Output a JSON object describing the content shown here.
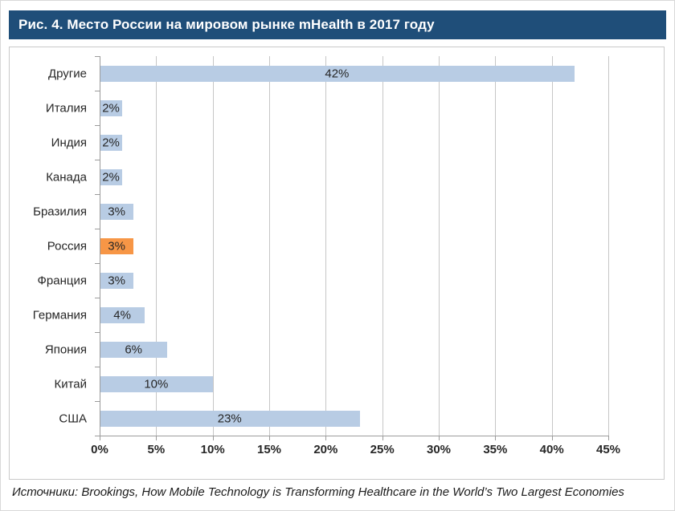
{
  "figure": {
    "source_note": "Источники: Brookings, How Mobile Technology is Transforming Healthcare in the World’s Two Largest Economies"
  },
  "colors": {
    "title_bar_bg": "#1f4e79",
    "title_text": "#ffffff",
    "bar": "#b8cce4",
    "bar_highlight": "#f79646",
    "gridline": "#c6c6c6",
    "axis_line": "#9b9b9b",
    "text": "#262626"
  },
  "chart_data": {
    "type": "bar",
    "orientation": "horizontal",
    "title": "Рис. 4. Место России на мировом рынке mHealth в 2017 году",
    "categories": [
      "Другие",
      "Италия",
      "Индия",
      "Канада",
      "Бразилия",
      "Россия",
      "Франция",
      "Германия",
      "Япония",
      "Китай",
      "США"
    ],
    "values": [
      42,
      2,
      2,
      2,
      3,
      3,
      3,
      4,
      6,
      10,
      23
    ],
    "value_labels": [
      "42%",
      "2%",
      "2%",
      "2%",
      "3%",
      "3%",
      "3%",
      "4%",
      "6%",
      "10%",
      "23%"
    ],
    "unit": "%",
    "highlight_category": "Россия",
    "highlight_index": 5,
    "xlim": [
      0,
      45
    ],
    "x_tick_values": [
      0,
      5,
      10,
      15,
      20,
      25,
      30,
      35,
      40,
      45
    ],
    "x_tick_labels": [
      "0%",
      "5%",
      "10%",
      "15%",
      "20%",
      "25%",
      "30%",
      "35%",
      "40%",
      "45%"
    ],
    "grid": true,
    "legend": "none",
    "xlabel": "",
    "ylabel": ""
  }
}
